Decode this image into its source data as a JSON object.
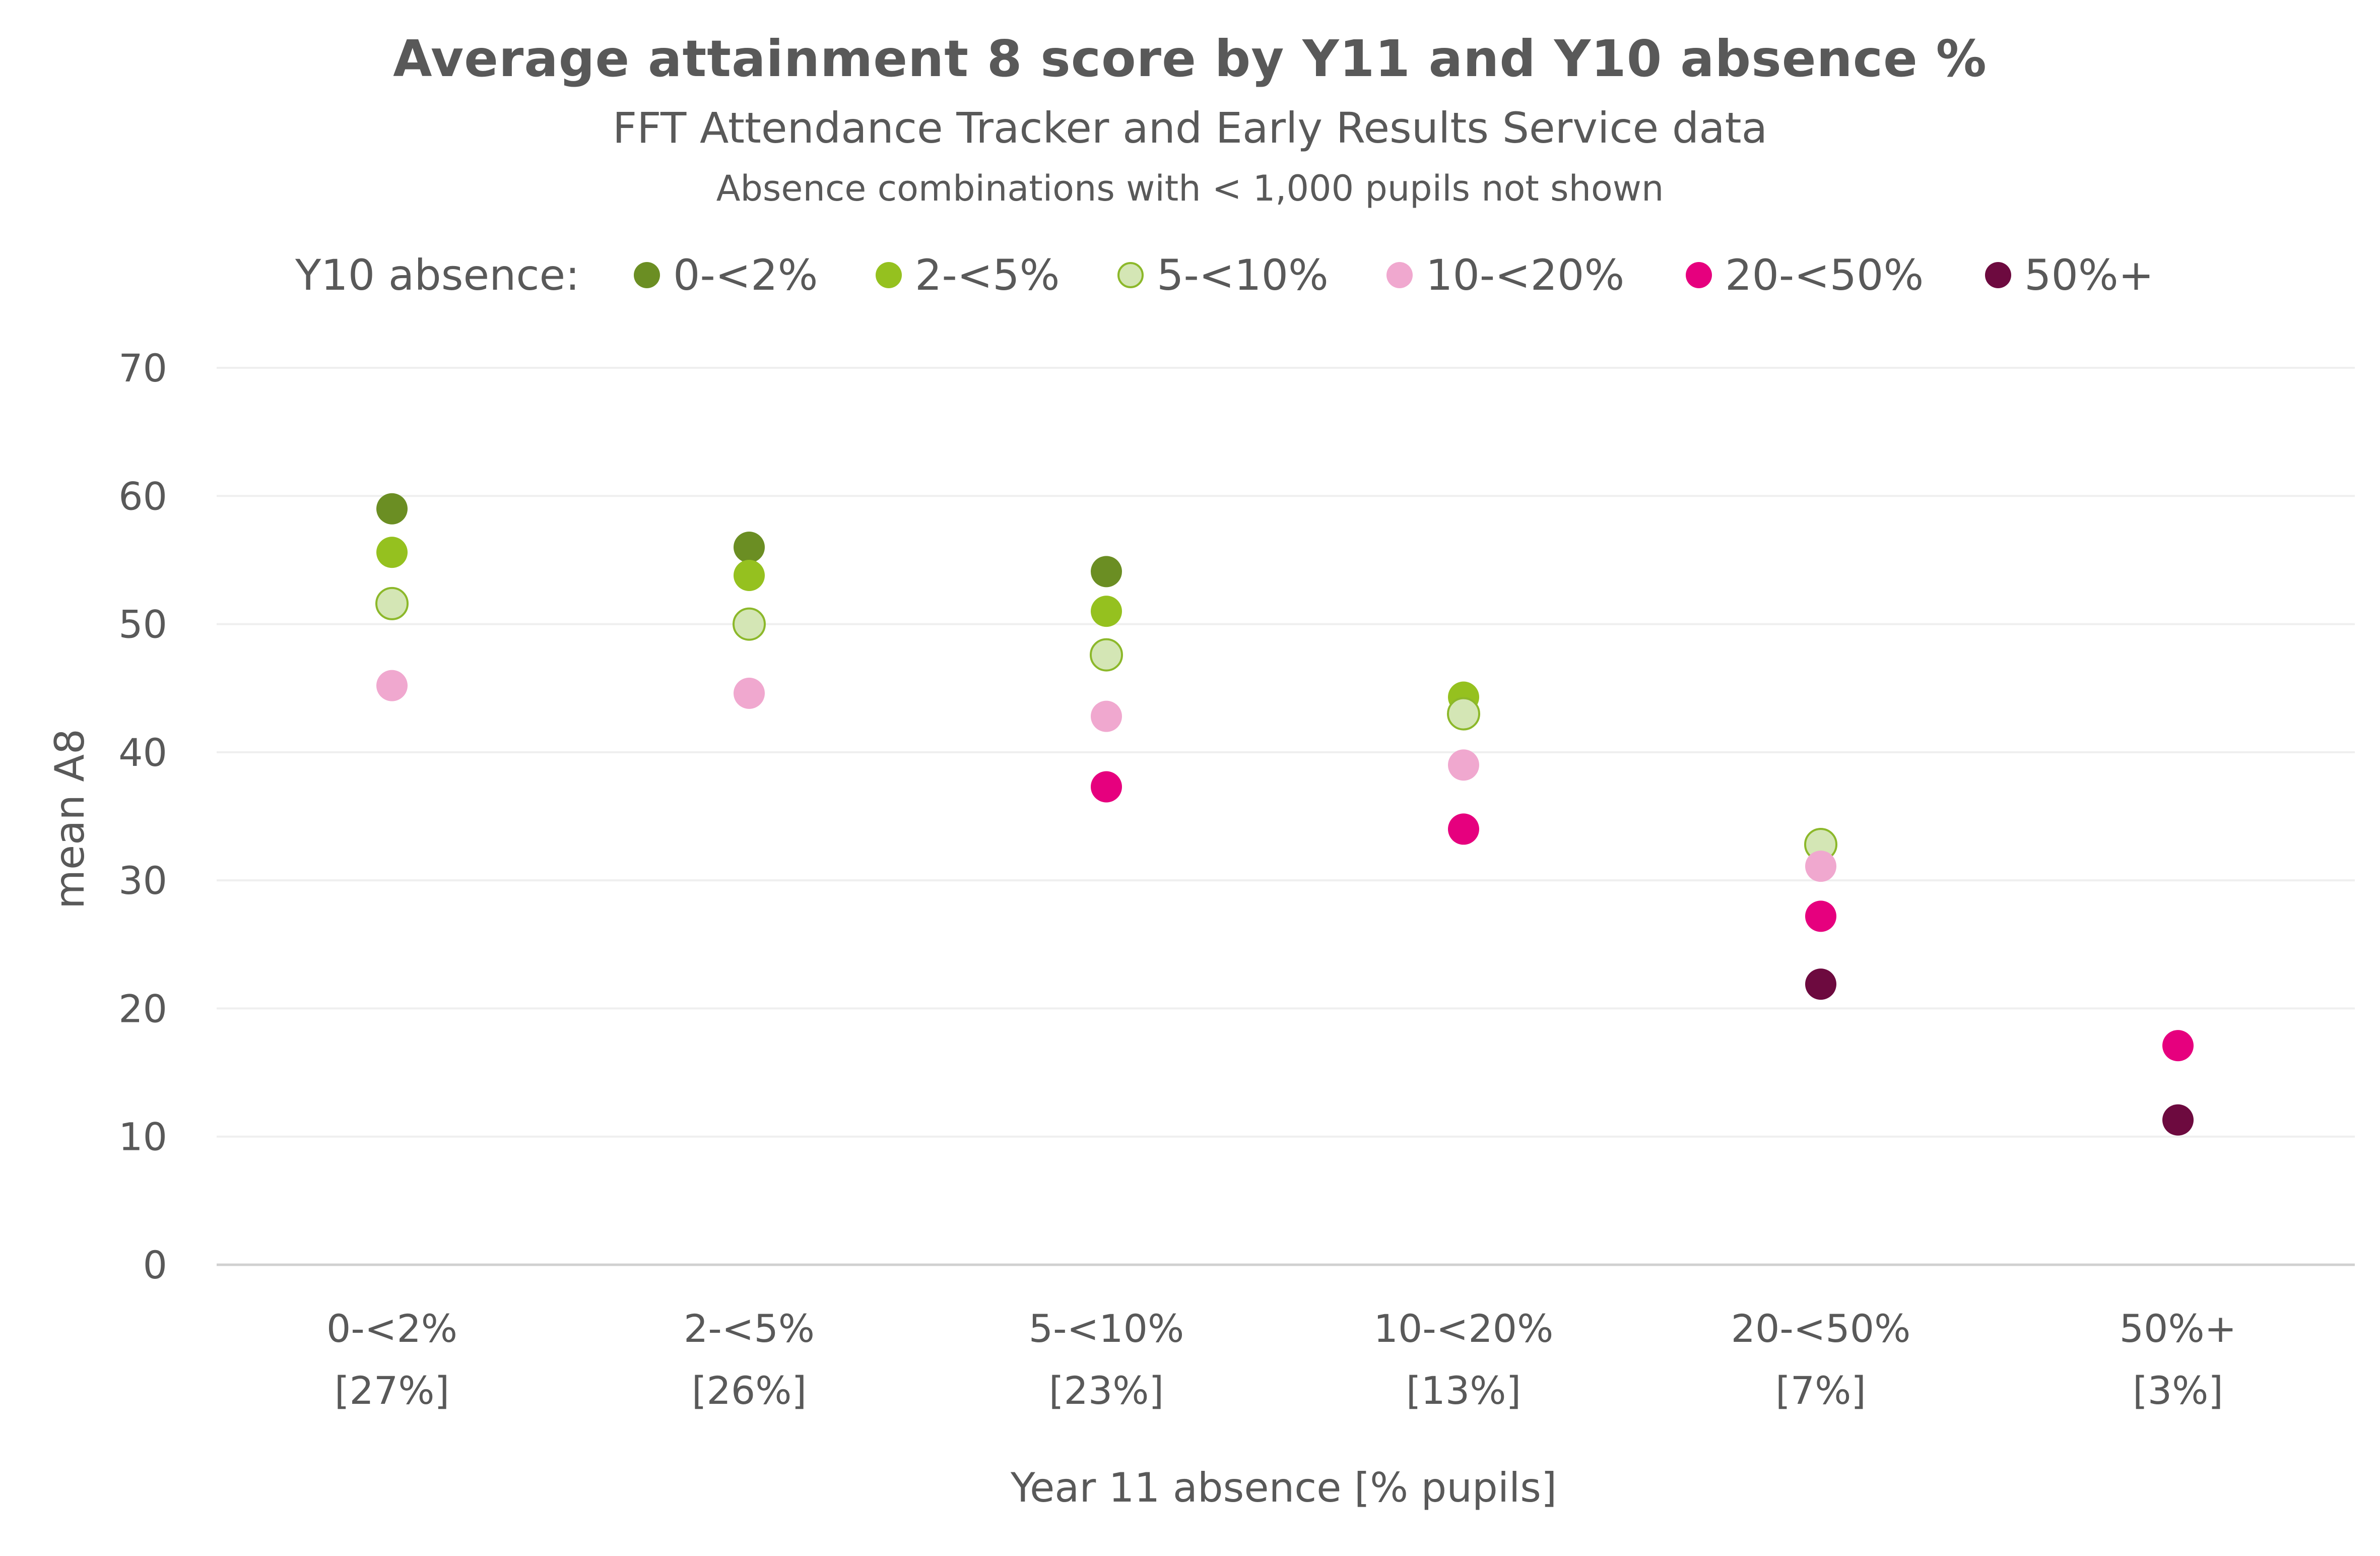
{
  "chart_data": {
    "type": "scatter",
    "title": "Average attainment 8 score by Y11 and Y10 absence %",
    "subtitle": "FFT Attendance Tracker and Early Results Service data",
    "note": "Absence combinations with < 1,000 pupils not shown",
    "xlabel": "Year 11 absence [% pupils]",
    "ylabel": "mean A8",
    "ylim": [
      0,
      70
    ],
    "yticks": [
      0,
      10,
      20,
      30,
      40,
      50,
      60,
      70
    ],
    "grid": true,
    "legend_title": "Y10 absence:",
    "legend_position": "top",
    "categories": [
      "0-<2%",
      "2-<5%",
      "5-<10%",
      "10-<20%",
      "20-<50%",
      "50%+"
    ],
    "category_shares": [
      "[27%]",
      "[26%]",
      "[23%]",
      "[13%]",
      "[7%]",
      "[3%]"
    ],
    "series": [
      {
        "name": "0-<2%",
        "color": "#6b8e23",
        "stroke": "#6b8e23",
        "values": [
          59,
          56,
          54.1,
          null,
          null,
          null
        ]
      },
      {
        "name": "2-<5%",
        "color": "#95c11f",
        "stroke": "#95c11f",
        "values": [
          55.6,
          53.8,
          51,
          44.3,
          null,
          null
        ]
      },
      {
        "name": "5-<10%",
        "color": "#d4e6b5",
        "stroke": "#8cb82a",
        "values": [
          51.6,
          50,
          47.6,
          43,
          32.8,
          null
        ]
      },
      {
        "name": "10-<20%",
        "color": "#f0a8cf",
        "stroke": "#f0a8cf",
        "values": [
          45.2,
          44.6,
          42.8,
          39,
          31.1,
          null
        ]
      },
      {
        "name": "20-<50%",
        "color": "#e6007e",
        "stroke": "#e6007e",
        "values": [
          null,
          null,
          37.3,
          34,
          27.2,
          17.1
        ]
      },
      {
        "name": "50%+",
        "color": "#6d0a3f",
        "stroke": "#6d0a3f",
        "values": [
          null,
          null,
          null,
          null,
          21.9,
          11.3
        ]
      }
    ],
    "colors": {
      "gridline": "#efefef",
      "axis": "#d0d0d0",
      "text": "#595959"
    }
  }
}
